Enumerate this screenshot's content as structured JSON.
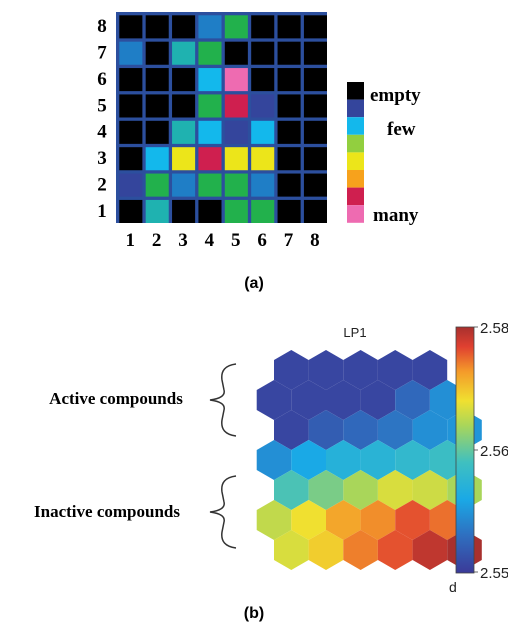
{
  "colors": {
    "empty": "#000000",
    "darkblue": "#34459c",
    "blue": "#1f7ec6",
    "teal": "#1fb2b0",
    "cyan": "#13b8ec",
    "green": "#22b14c",
    "lime": "#92cf3f",
    "yellow": "#ece51a",
    "orange": "#f7a21c",
    "red": "#cf1f4f",
    "pink": "#ee6bb1",
    "grid_border": "#2c4f9e"
  },
  "panel_a": {
    "label": "(a)",
    "grid_rows": [
      [
        "empty",
        "empty",
        "empty",
        "blue",
        "green",
        "empty",
        "empty",
        "empty"
      ],
      [
        "blue",
        "empty",
        "teal",
        "green",
        "empty",
        "empty",
        "empty",
        "empty"
      ],
      [
        "empty",
        "empty",
        "empty",
        "cyan",
        "pink",
        "empty",
        "empty",
        "empty"
      ],
      [
        "empty",
        "empty",
        "empty",
        "green",
        "red",
        "darkblue",
        "empty",
        "empty"
      ],
      [
        "empty",
        "empty",
        "teal",
        "cyan",
        "darkblue",
        "cyan",
        "empty",
        "empty"
      ],
      [
        "empty",
        "cyan",
        "yellow",
        "red",
        "yellow",
        "yellow",
        "empty",
        "empty"
      ],
      [
        "darkblue",
        "green",
        "blue",
        "green",
        "green",
        "blue",
        "empty",
        "empty"
      ],
      [
        "empty",
        "teal",
        "empty",
        "empty",
        "green",
        "green",
        "empty",
        "empty"
      ]
    ],
    "row_labels": [
      "8",
      "7",
      "6",
      "5",
      "4",
      "3",
      "2",
      "1"
    ],
    "col_labels": [
      "1",
      "2",
      "3",
      "4",
      "5",
      "6",
      "7",
      "8"
    ],
    "legend": {
      "swatches": [
        "empty",
        "darkblue",
        "cyan",
        "lime",
        "yellow",
        "orange",
        "red",
        "pink"
      ],
      "label_top": "empty",
      "label_mid": "few",
      "label_bottom": "many"
    }
  },
  "panel_b": {
    "label": "(b)",
    "title": "LP1",
    "active_label": "Active compounds",
    "inactive_label": "Inactive compounds",
    "hex_rows": [
      [
        2.551,
        2.551,
        2.551,
        2.551,
        2.551
      ],
      [
        2.551,
        2.551,
        2.551,
        2.551,
        2.554,
        2.557
      ],
      [
        2.551,
        2.553,
        2.554,
        2.555,
        2.557,
        2.5575
      ],
      [
        2.557,
        2.559,
        2.5605,
        2.561,
        2.562,
        2.563
      ],
      [
        2.564,
        2.566,
        2.568,
        2.57,
        2.5695,
        2.568
      ],
      [
        2.569,
        2.571,
        2.574,
        2.575,
        2.577,
        2.576
      ],
      [
        2.57,
        2.572,
        2.5755,
        2.577,
        2.579,
        2.58
      ]
    ],
    "colorbar": {
      "min": 2.55,
      "max": 2.58,
      "tick_top": "2.58",
      "tick_mid": "2.56",
      "tick_bottom": "2.55",
      "unit_label": "d"
    }
  }
}
